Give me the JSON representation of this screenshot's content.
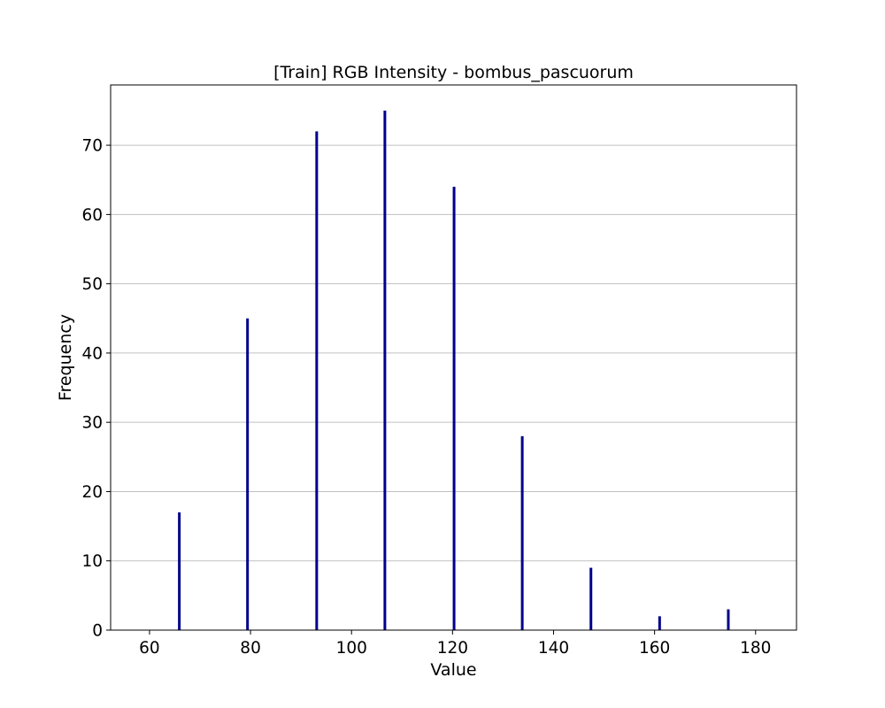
{
  "chart_data": {
    "type": "bar",
    "title": "[Train] RGB Intensity - bombus_pascuorum",
    "xlabel": "Value",
    "ylabel": "Frequency",
    "x": [
      65.9,
      79.4,
      93.1,
      106.6,
      120.3,
      133.8,
      147.4,
      161.0,
      174.6
    ],
    "values": [
      17,
      45,
      72,
      75,
      64,
      28,
      9,
      2,
      3
    ],
    "xlim": [
      52.3,
      188.1
    ],
    "ylim": [
      0,
      78.7
    ],
    "xticks": [
      60,
      80,
      100,
      120,
      140,
      160,
      180
    ],
    "yticks": [
      0,
      10,
      20,
      30,
      40,
      50,
      60,
      70
    ],
    "grid": "y",
    "legend": "none",
    "bar_color": "#00008b",
    "grid_color": "#c0c0c0"
  }
}
